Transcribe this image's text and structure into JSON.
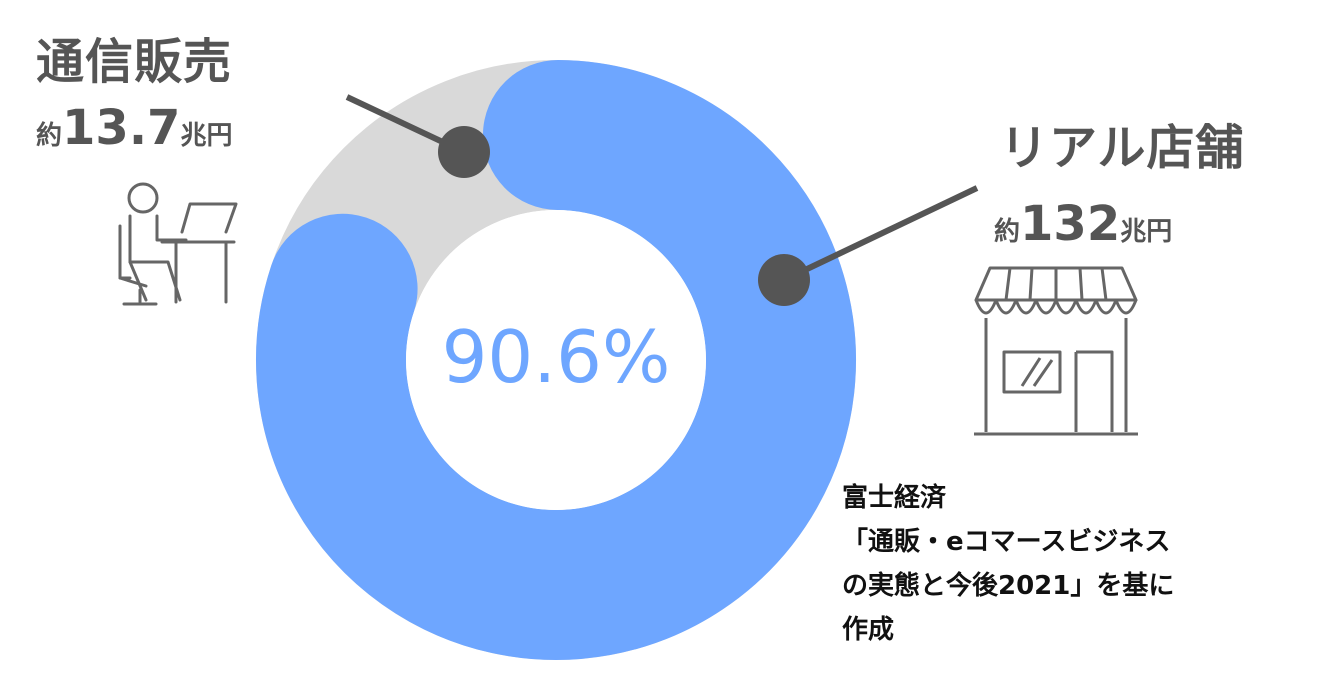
{
  "chart_data": {
    "type": "pie",
    "subtype": "donut",
    "center_label": "90.6%",
    "slices": [
      {
        "id": "store",
        "label": "リアル店舗",
        "amount_prefix": "約",
        "amount_number": "132",
        "amount_unit": "兆円",
        "value": 132,
        "share_percent": 90.6,
        "color": "#6ea6ff"
      },
      {
        "id": "online",
        "label": "通信販売",
        "amount_prefix": "約",
        "amount_number": "13.7",
        "amount_unit": "兆円",
        "value": 13.7,
        "share_percent": 9.4,
        "color": "#d9d9d9"
      }
    ]
  },
  "source": {
    "line1": "富士経済",
    "line2": "「通販・eコマースビジネス",
    "line3": "の実態と今後2021」を基に",
    "line4": "作成"
  },
  "colors": {
    "accent": "#6ea6ff",
    "muted_slice": "#d9d9d9",
    "text_gray": "#555555",
    "leader": "#555555"
  },
  "icons": {
    "online": "person-at-computer-icon",
    "store": "storefront-icon"
  }
}
